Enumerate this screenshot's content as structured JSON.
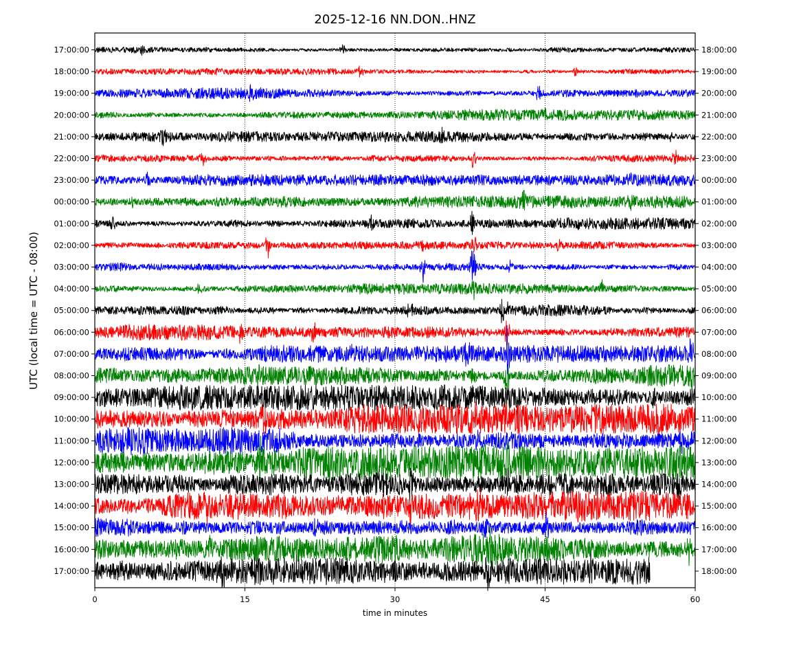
{
  "chart_data": {
    "type": "line",
    "title": "2025-12-16 NN.DON..HNZ",
    "xlabel": "time in minutes",
    "ylabel": "UTC (local time = UTC - 08:00)",
    "xlim": [
      0,
      60
    ],
    "x_ticks": [
      "0",
      "15",
      "30",
      "45",
      "60"
    ],
    "x_tick_values": [
      0,
      15,
      30,
      45,
      60
    ],
    "vertical_gridlines_at": [
      15,
      30,
      45
    ],
    "grid": "vertical dotted at 15, 30, 45",
    "left_tick_labels": [
      "17:00:00",
      "18:00:00",
      "19:00:00",
      "20:00:00",
      "21:00:00",
      "22:00:00",
      "23:00:00",
      "00:00:00",
      "01:00:00",
      "02:00:00",
      "03:00:00",
      "04:00:00",
      "05:00:00",
      "06:00:00",
      "07:00:00",
      "08:00:00",
      "09:00:00",
      "10:00:00",
      "11:00:00",
      "12:00:00",
      "13:00:00",
      "14:00:00",
      "15:00:00",
      "16:00:00",
      "17:00:00"
    ],
    "right_tick_labels": [
      "18:00:00",
      "19:00:00",
      "20:00:00",
      "21:00:00",
      "22:00:00",
      "23:00:00",
      "00:00:00",
      "01:00:00",
      "02:00:00",
      "03:00:00",
      "04:00:00",
      "05:00:00",
      "06:00:00",
      "07:00:00",
      "08:00:00",
      "09:00:00",
      "10:00:00",
      "11:00:00",
      "12:00:00",
      "13:00:00",
      "14:00:00",
      "15:00:00",
      "16:00:00",
      "17:00:00",
      "18:00:00"
    ],
    "trace_colors": [
      "#000000",
      "#ff0000",
      "#0000ff",
      "#008000"
    ],
    "traces": [
      {
        "hour": "17:00:00",
        "color": "#000000",
        "noise_amplitude": 0.22,
        "end_minute": 60,
        "spikes": [
          {
            "t": 4.7,
            "a": 0.5
          },
          {
            "t": 24.8,
            "a": 0.6
          }
        ]
      },
      {
        "hour": "18:00:00",
        "color": "#ff0000",
        "noise_amplitude": 0.2,
        "end_minute": 60,
        "spikes": [
          {
            "t": 26.5,
            "a": 0.5
          },
          {
            "t": 48.0,
            "a": 0.4
          }
        ]
      },
      {
        "hour": "19:00:00",
        "color": "#0000ff",
        "noise_amplitude": 0.3,
        "end_minute": 60,
        "spikes": [
          {
            "t": 15.7,
            "a": 0.7
          },
          {
            "t": 44.3,
            "a": 0.7
          }
        ]
      },
      {
        "hour": "20:00:00",
        "color": "#008000",
        "noise_amplitude": 0.3,
        "end_minute": 60,
        "spikes": [
          {
            "t": 45.0,
            "a": 0.4
          }
        ]
      },
      {
        "hour": "21:00:00",
        "color": "#000000",
        "noise_amplitude": 0.28,
        "end_minute": 60,
        "spikes": [
          {
            "t": 6.8,
            "a": 0.8
          },
          {
            "t": 34.7,
            "a": 0.6
          },
          {
            "t": 57.7,
            "a": 0.5
          }
        ]
      },
      {
        "hour": "22:00:00",
        "color": "#ff0000",
        "noise_amplitude": 0.25,
        "end_minute": 60,
        "spikes": [
          {
            "t": 10.8,
            "a": 0.5
          },
          {
            "t": 37.8,
            "a": 0.8
          },
          {
            "t": 58.0,
            "a": 0.8
          }
        ]
      },
      {
        "hour": "23:00:00",
        "color": "#0000ff",
        "noise_amplitude": 0.3,
        "end_minute": 60,
        "spikes": [
          {
            "t": 5.3,
            "a": 0.8
          },
          {
            "t": 53.3,
            "a": 0.5
          }
        ]
      },
      {
        "hour": "00:00:00",
        "color": "#008000",
        "noise_amplitude": 0.32,
        "end_minute": 60,
        "spikes": [
          {
            "t": 3.8,
            "a": 0.6
          },
          {
            "t": 42.8,
            "a": 0.8
          },
          {
            "t": 53.5,
            "a": 0.9
          }
        ]
      },
      {
        "hour": "01:00:00",
        "color": "#000000",
        "noise_amplitude": 0.32,
        "end_minute": 60,
        "spikes": [
          {
            "t": 1.8,
            "a": 0.6
          },
          {
            "t": 27.6,
            "a": 0.6
          },
          {
            "t": 37.7,
            "a": 1.0
          }
        ]
      },
      {
        "hour": "02:00:00",
        "color": "#ff0000",
        "noise_amplitude": 0.2,
        "end_minute": 60,
        "spikes": [
          {
            "t": 17.3,
            "a": 1.1
          },
          {
            "t": 32.8,
            "a": 0.5
          },
          {
            "t": 38.0,
            "a": 0.9
          },
          {
            "t": 46.3,
            "a": 0.6
          }
        ]
      },
      {
        "hour": "03:00:00",
        "color": "#0000ff",
        "noise_amplitude": 0.3,
        "end_minute": 60,
        "spikes": [
          {
            "t": 32.8,
            "a": 1.4
          },
          {
            "t": 37.8,
            "a": 2.0
          },
          {
            "t": 41.5,
            "a": 0.5
          }
        ]
      },
      {
        "hour": "04:00:00",
        "color": "#008000",
        "noise_amplitude": 0.3,
        "end_minute": 60,
        "spikes": [
          {
            "t": 10.5,
            "a": 0.5
          },
          {
            "t": 37.8,
            "a": 0.8
          },
          {
            "t": 50.7,
            "a": 0.5
          }
        ]
      },
      {
        "hour": "05:00:00",
        "color": "#000000",
        "noise_amplitude": 0.35,
        "end_minute": 60,
        "spikes": [
          {
            "t": 31.5,
            "a": 0.7
          },
          {
            "t": 40.7,
            "a": 1.0
          },
          {
            "t": 41.3,
            "a": 0.6
          }
        ]
      },
      {
        "hour": "06:00:00",
        "color": "#ff0000",
        "noise_amplitude": 0.42,
        "end_minute": 60,
        "spikes": [
          {
            "t": 14.5,
            "a": 0.8
          },
          {
            "t": 21.8,
            "a": 0.9
          },
          {
            "t": 41.2,
            "a": 1.2
          }
        ]
      },
      {
        "hour": "07:00:00",
        "color": "#0000ff",
        "noise_amplitude": 0.45,
        "end_minute": 60,
        "spikes": [
          {
            "t": 25.8,
            "a": 0.7
          },
          {
            "t": 37.2,
            "a": 0.9
          },
          {
            "t": 41.2,
            "a": 1.8
          },
          {
            "t": 59.5,
            "a": 0.8
          }
        ]
      },
      {
        "hour": "08:00:00",
        "color": "#008000",
        "noise_amplitude": 0.58,
        "end_minute": 60,
        "spikes": [
          {
            "t": 16.2,
            "a": 0.9
          },
          {
            "t": 37.8,
            "a": 1.2
          },
          {
            "t": 41.2,
            "a": 1.5
          },
          {
            "t": 59.8,
            "a": 1.2
          }
        ]
      },
      {
        "hour": "09:00:00",
        "color": "#000000",
        "noise_amplitude": 0.68,
        "end_minute": 60,
        "spikes": [
          {
            "t": 17.0,
            "a": 1.0
          },
          {
            "t": 37.8,
            "a": 1.0
          },
          {
            "t": 55.8,
            "a": 0.9
          }
        ]
      },
      {
        "hour": "10:00:00",
        "color": "#ff0000",
        "noise_amplitude": 0.78,
        "end_minute": 60,
        "spikes": [
          {
            "t": 16.8,
            "a": 1.2
          },
          {
            "t": 38.0,
            "a": 1.1
          },
          {
            "t": 57.5,
            "a": 1.0
          }
        ]
      },
      {
        "hour": "11:00:00",
        "color": "#0000ff",
        "noise_amplitude": 0.88,
        "end_minute": 60,
        "spikes": [
          {
            "t": 16.6,
            "a": 1.3
          },
          {
            "t": 38.4,
            "a": 1.0
          },
          {
            "t": 58.6,
            "a": 1.0
          }
        ]
      },
      {
        "hour": "12:00:00",
        "color": "#008000",
        "noise_amplitude": 0.92,
        "end_minute": 60,
        "spikes": [
          {
            "t": 16.5,
            "a": 2.2
          },
          {
            "t": 41.2,
            "a": 1.3
          },
          {
            "t": 59.2,
            "a": 1.2
          }
        ]
      },
      {
        "hour": "13:00:00",
        "color": "#000000",
        "noise_amplitude": 0.82,
        "end_minute": 60,
        "spikes": [
          {
            "t": 31.5,
            "a": 1.0
          },
          {
            "t": 41.2,
            "a": 1.0
          },
          {
            "t": 58.4,
            "a": 1.0
          }
        ]
      },
      {
        "hour": "14:00:00",
        "color": "#ff0000",
        "noise_amplitude": 0.88,
        "end_minute": 60,
        "spikes": [
          {
            "t": 11.3,
            "a": 1.0
          },
          {
            "t": 31.5,
            "a": 1.1
          },
          {
            "t": 38.3,
            "a": 1.0
          }
        ]
      },
      {
        "hour": "15:00:00",
        "color": "#0000ff",
        "noise_amplitude": 0.82,
        "end_minute": 60,
        "spikes": [
          {
            "t": 22.0,
            "a": 1.0
          },
          {
            "t": 39.0,
            "a": 1.0
          },
          {
            "t": 45.1,
            "a": 1.2
          }
        ]
      },
      {
        "hour": "16:00:00",
        "color": "#008000",
        "noise_amplitude": 0.8,
        "end_minute": 60,
        "spikes": [
          {
            "t": 11.5,
            "a": 0.9
          },
          {
            "t": 39.6,
            "a": 1.0
          },
          {
            "t": 59.5,
            "a": 1.2
          }
        ]
      },
      {
        "hour": "17:00:00",
        "color": "#000000",
        "noise_amplitude": 0.72,
        "end_minute": 55.5,
        "spikes": [
          {
            "t": 12.8,
            "a": 1.1
          },
          {
            "t": 20.3,
            "a": 1.2
          },
          {
            "t": 39.3,
            "a": 1.4
          },
          {
            "t": 41.2,
            "a": 1.1
          },
          {
            "t": 49.6,
            "a": 1.0
          }
        ]
      }
    ]
  }
}
